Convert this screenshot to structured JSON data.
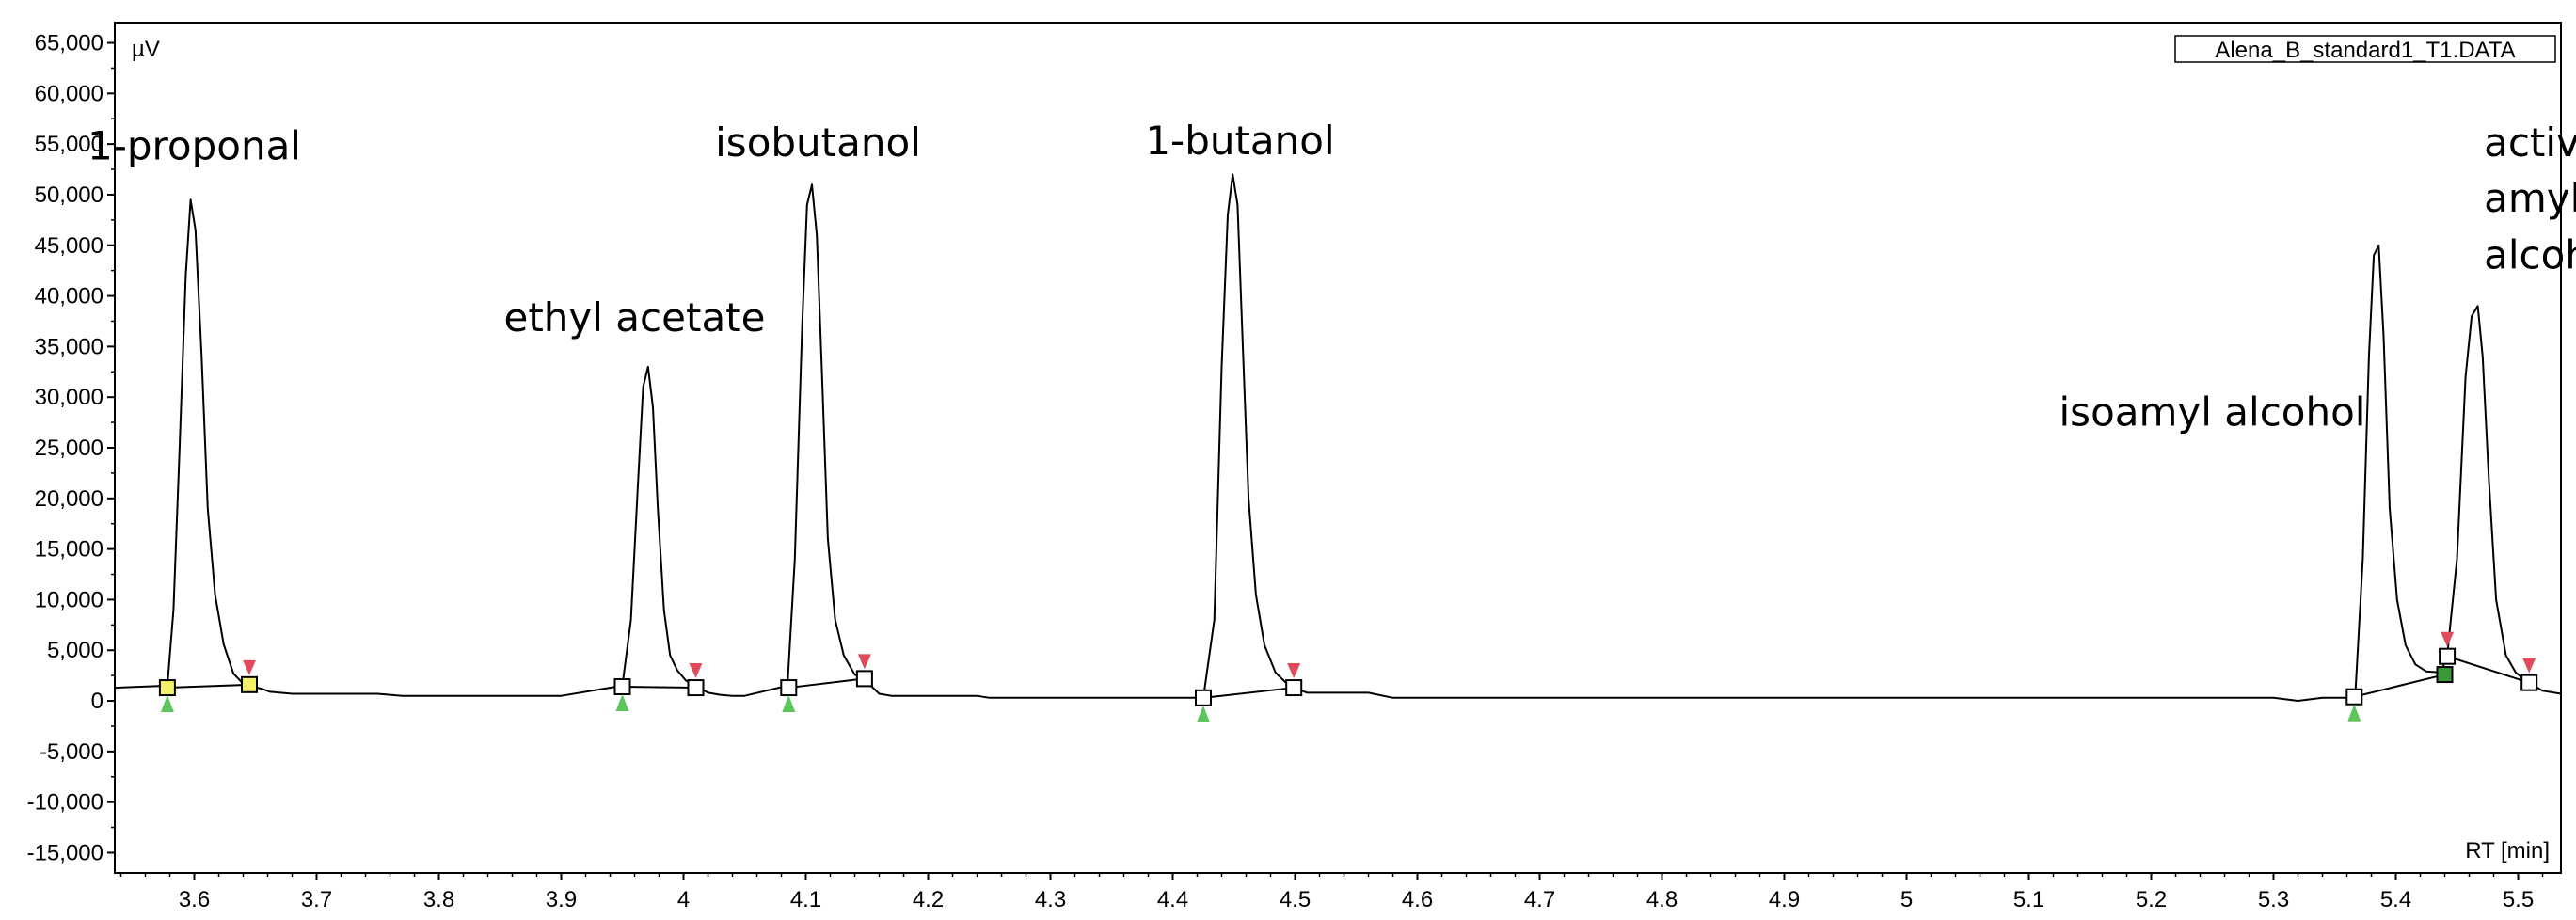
{
  "chart_data": {
    "type": "line",
    "title": "",
    "file_label": "Alena_B_standard1_T1.DATA",
    "ylabel": "µV",
    "xlabel": "RT [min]",
    "xlim": [
      3.535,
      5.535
    ],
    "ylim": [
      -17000,
      67000
    ],
    "y_ticks": [
      65000,
      60000,
      55000,
      50000,
      45000,
      40000,
      35000,
      30000,
      25000,
      20000,
      15000,
      10000,
      5000,
      0,
      -5000,
      -10000,
      -15000
    ],
    "y_tick_labels": [
      "65,000",
      "60,000",
      "55,000",
      "50,000",
      "45,000",
      "40,000",
      "35,000",
      "30,000",
      "25,000",
      "20,000",
      "15,000",
      "10,000",
      "5,000",
      "0",
      "-5,000",
      "-10,000",
      "-15,000"
    ],
    "x_ticks": [
      3.6,
      3.7,
      3.8,
      3.9,
      4.0,
      4.1,
      4.2,
      4.3,
      4.4,
      4.5,
      4.6,
      4.7,
      4.8,
      4.9,
      5.0,
      5.1,
      5.2,
      5.3,
      5.4,
      5.5
    ],
    "x_tick_labels": [
      "3.6",
      "3.7",
      "3.8",
      "3.9",
      "4",
      "4.1",
      "4.2",
      "4.3",
      "4.4",
      "4.5",
      "4.6",
      "4.7",
      "4.8",
      "4.9",
      "5",
      "5.1",
      "5.2",
      "5.3",
      "5.4",
      "5.5"
    ],
    "grid": false,
    "series": [
      {
        "color": "#000000",
        "x": [
          3.535,
          3.578,
          3.583,
          3.588,
          3.593,
          3.597,
          3.601,
          3.606,
          3.611,
          3.617,
          3.624,
          3.632,
          3.64,
          3.648,
          3.655,
          3.662,
          3.68,
          3.75,
          3.77,
          3.9,
          3.95,
          3.957,
          3.963,
          3.967,
          3.971,
          3.975,
          3.979,
          3.984,
          3.989,
          3.995,
          4.002,
          4.01,
          4.02,
          4.03,
          4.04,
          4.05,
          4.085,
          4.091,
          4.097,
          4.101,
          4.105,
          4.109,
          4.113,
          4.118,
          4.124,
          4.131,
          4.14,
          4.148,
          4.16,
          4.17,
          4.24,
          4.25,
          4.425,
          4.434,
          4.44,
          4.445,
          4.449,
          4.453,
          4.457,
          4.462,
          4.468,
          4.475,
          4.484,
          4.495,
          4.51,
          4.56,
          4.58,
          5.3,
          5.32,
          5.34,
          5.36,
          5.367,
          5.373,
          5.378,
          5.382,
          5.386,
          5.39,
          5.395,
          5.401,
          5.408,
          5.416,
          5.425,
          5.437,
          5.442,
          5.45,
          5.457,
          5.462,
          5.467,
          5.471,
          5.476,
          5.482,
          5.49,
          5.498,
          5.51,
          5.52,
          5.535
        ],
        "y": [
          1300,
          1500,
          9000,
          25000,
          42000,
          49500,
          46500,
          34000,
          19000,
          10500,
          5600,
          2700,
          1700,
          1400,
          1200,
          900,
          700,
          700,
          500,
          500,
          1500,
          8000,
          22000,
          31000,
          33000,
          29000,
          19000,
          9000,
          4500,
          3000,
          2000,
          1500,
          800,
          600,
          500,
          500,
          1500,
          14000,
          37000,
          49000,
          51000,
          46000,
          33000,
          16000,
          8000,
          4500,
          2600,
          2100,
          700,
          500,
          500,
          300,
          300,
          8000,
          33000,
          48000,
          52000,
          49000,
          36000,
          20000,
          10500,
          5500,
          2800,
          1500,
          800,
          800,
          300,
          300,
          0,
          300,
          300,
          900,
          14000,
          34000,
          44000,
          45000,
          36000,
          19000,
          10000,
          5500,
          3600,
          2900,
          2800,
          4500,
          14000,
          32000,
          38000,
          39000,
          34000,
          22000,
          10000,
          4500,
          2800,
          1700,
          1000,
          700
        ]
      }
    ],
    "peak_labels": [
      {
        "text": "1-proponal",
        "x": 3.6,
        "y": 53500
      },
      {
        "text": "ethyl acetate",
        "x": 3.96,
        "y": 36500
      },
      {
        "text": "isobutanol",
        "x": 4.11,
        "y": 53800
      },
      {
        "text": "1-butanol",
        "x": 4.455,
        "y": 54000
      },
      {
        "text": "isoamyl alcohol",
        "x": 5.25,
        "y": 27200
      },
      {
        "text": "active",
        "x": 5.472,
        "y": 53800
      },
      {
        "text": "amyl",
        "x": 5.472,
        "y": 48300
      },
      {
        "text": "alcohol",
        "x": 5.472,
        "y": 42700
      }
    ],
    "integration_boundaries": [
      {
        "x": 3.578,
        "y": 1300,
        "box": "#f3f16a",
        "start": true
      },
      {
        "x": 3.645,
        "y": 1600,
        "box": "#f3f16a",
        "end": true
      },
      {
        "x": 3.95,
        "y": 1400,
        "box": "#ffffff",
        "start": true
      },
      {
        "x": 4.01,
        "y": 1300,
        "box": "#ffffff",
        "end": true
      },
      {
        "x": 4.086,
        "y": 1300,
        "box": "#ffffff",
        "start": true
      },
      {
        "x": 4.148,
        "y": 2200,
        "box": "#ffffff",
        "end": true
      },
      {
        "x": 4.425,
        "y": 300,
        "box": "#ffffff",
        "start": true
      },
      {
        "x": 4.499,
        "y": 1300,
        "box": "#ffffff",
        "end": true
      },
      {
        "x": 5.366,
        "y": 400,
        "box": "#ffffff",
        "start": true
      },
      {
        "x": 5.44,
        "y": 2600,
        "box": "#3a9a3a",
        "end": true
      },
      {
        "x": 5.442,
        "y": 4400,
        "box": "#ffffff",
        "end": true
      },
      {
        "x": 5.509,
        "y": 1800,
        "box": "#ffffff",
        "end": true
      }
    ],
    "baselines": [
      [
        [
          3.578,
          1300
        ],
        [
          3.645,
          1600
        ]
      ],
      [
        [
          3.95,
          1400
        ],
        [
          4.01,
          1300
        ]
      ],
      [
        [
          4.086,
          1300
        ],
        [
          4.148,
          2200
        ]
      ],
      [
        [
          4.425,
          300
        ],
        [
          4.499,
          1300
        ]
      ],
      [
        [
          5.366,
          400
        ],
        [
          5.44,
          2600
        ]
      ],
      [
        [
          5.442,
          4400
        ],
        [
          5.509,
          1800
        ]
      ]
    ],
    "marker_colors": {
      "start": "#5cc65c",
      "end": "#e04a5a"
    }
  }
}
